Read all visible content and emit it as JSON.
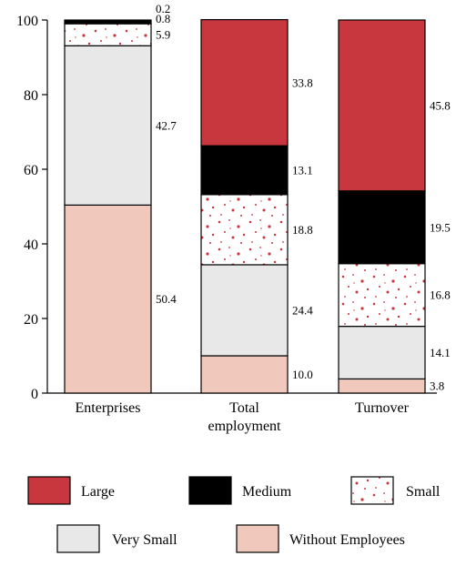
{
  "chart_data": {
    "type": "bar",
    "stacked": true,
    "percent": true,
    "categories": [
      "Enterprises",
      "Total employment",
      "Turnover"
    ],
    "category_lines": [
      [
        "Enterprises"
      ],
      [
        "Total",
        "employment"
      ],
      [
        "Turnover"
      ]
    ],
    "ylim": [
      0,
      100
    ],
    "yticks": [
      0,
      20,
      40,
      60,
      80,
      100
    ],
    "xlabel": "",
    "ylabel": "",
    "legend_position": "bottom",
    "series": [
      {
        "name": "Without Employees",
        "values": [
          50.4,
          10.0,
          3.8
        ],
        "labels": [
          "50.4",
          "10.0",
          "3.8"
        ],
        "color": "#f0c8bc",
        "pattern": "solid"
      },
      {
        "name": "Very Small",
        "values": [
          42.7,
          24.4,
          14.1
        ],
        "labels": [
          "42.7",
          "24.4",
          "14.1"
        ],
        "color": "#e8e8e8",
        "pattern": "solid"
      },
      {
        "name": "Small",
        "values": [
          5.9,
          18.8,
          16.8
        ],
        "labels": [
          "5.9",
          "18.8",
          "16.8"
        ],
        "color": "#ffffff",
        "pattern": "red-speckle"
      },
      {
        "name": "Medium",
        "values": [
          0.8,
          13.1,
          19.5
        ],
        "labels": [
          "0.8",
          "13.1",
          "19.5"
        ],
        "color": "#000000",
        "pattern": "solid"
      },
      {
        "name": "Large",
        "values": [
          0.2,
          33.8,
          45.8
        ],
        "labels": [
          "0.2",
          "33.8",
          "45.8"
        ],
        "color": "#c8363e",
        "pattern": "solid"
      }
    ],
    "speckle_color": "#c8363e"
  }
}
